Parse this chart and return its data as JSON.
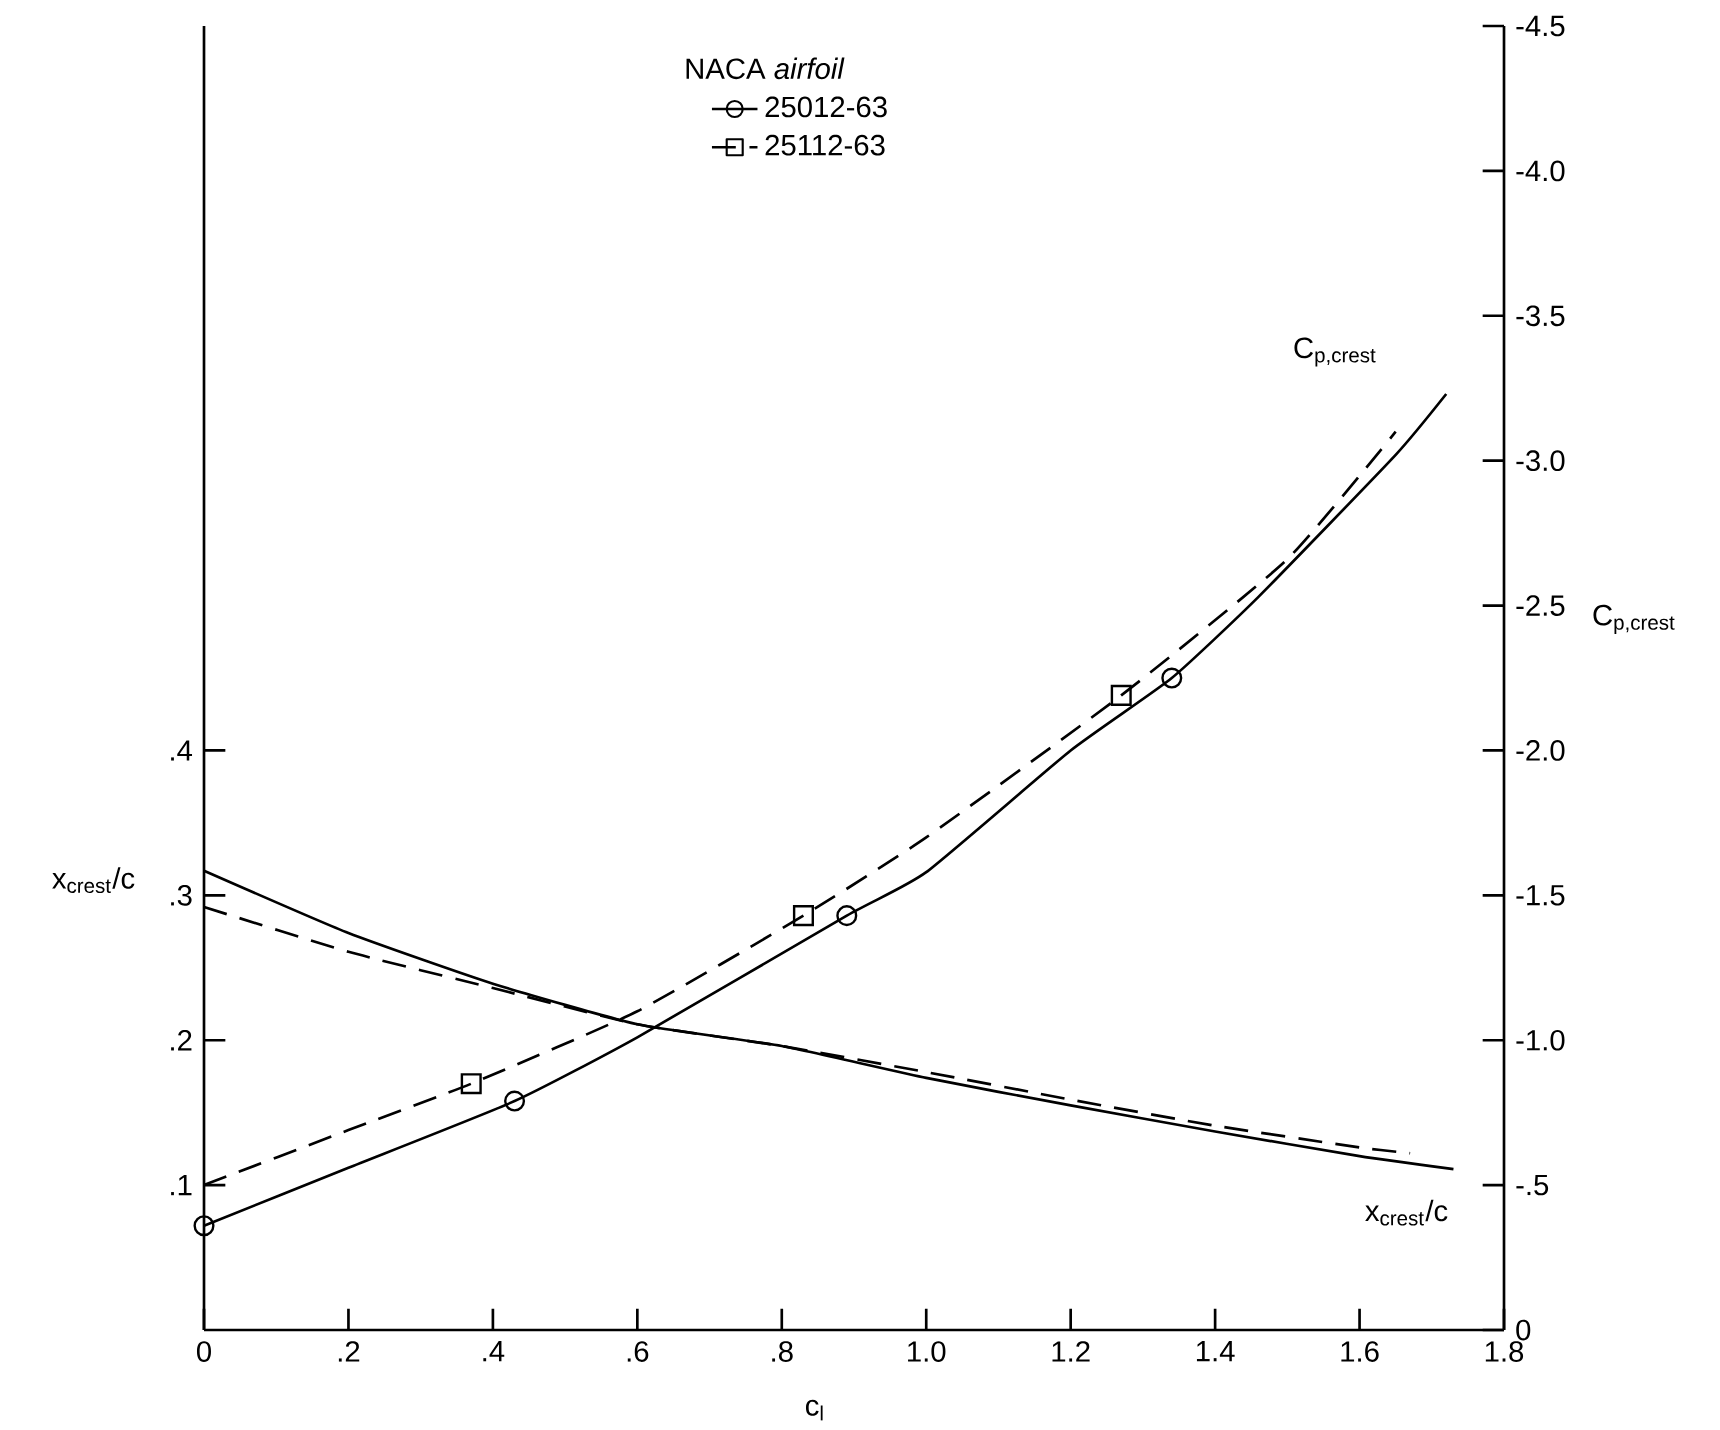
{
  "chart_data": {
    "type": "line",
    "xlabel": "c$_{l}$",
    "ylabel": "x$_{crest}$/c",
    "y2label": "C$_{p,crest}$",
    "legend_title": "NACA *airfoil*",
    "legend": "top",
    "annotations": [
      "C$_{p,crest}$",
      "x$_{crest}$/c"
    ],
    "xlim": [
      0,
      1.8
    ],
    "xticks": [
      0,
      {
        "value": 0.2,
        "label": ".2"
      },
      {
        "value": 0.4,
        "label": ".4"
      },
      {
        "value": 0.6,
        "label": ".6"
      },
      {
        "value": 0.8,
        "label": ".8"
      },
      {
        "value": 1.0,
        "label": "1.0"
      },
      {
        "value": 1.2,
        "label": "1.2"
      },
      {
        "value": 1.4,
        "label": "1.4"
      },
      {
        "value": 1.6,
        "label": "1.6"
      },
      {
        "value": 1.8,
        "label": "1.8"
      }
    ],
    "ylim": [
      0,
      0.9
    ],
    "yticks": [
      {
        "value": 0.1,
        "label": ".1"
      },
      {
        "value": 0.2,
        "label": ".2"
      },
      {
        "value": 0.3,
        "label": ".3"
      },
      {
        "value": 0.4,
        "label": ".4"
      }
    ],
    "y2lim": [
      0,
      -4.5
    ],
    "y2ticks": [
      0,
      {
        "value": -0.5,
        "label": "-.5"
      },
      {
        "value": -1.0,
        "label": "-1.0"
      },
      {
        "value": -1.5,
        "label": "-1.5"
      },
      {
        "value": -2.0,
        "label": "-2.0"
      },
      {
        "value": -2.5,
        "label": "-2.5"
      },
      {
        "value": -3.0,
        "label": "-3.0"
      },
      {
        "value": -3.5,
        "label": "-3.5"
      },
      {
        "value": -4.0,
        "label": "-4.0"
      },
      {
        "value": -4.5,
        "label": "-4.5"
      }
    ],
    "series": [
      {
        "name": "25012-63",
        "axis": "y2",
        "line_style": "solid",
        "color": "#000000",
        "x": [
          0,
          0.2,
          0.43,
          0.6,
          0.89,
          1.0,
          1.2,
          1.34,
          1.46,
          1.65,
          1.72
        ],
        "values": [
          -0.36,
          -0.56,
          -0.79,
          -1.01,
          -1.43,
          -1.58,
          -2.0,
          -2.25,
          -2.53,
          -3.02,
          -3.23
        ]
      },
      {
        "name": "25112-63",
        "axis": "y2",
        "line_style": "dashed",
        "color": "#000000",
        "x": [
          0,
          0.2,
          0.37,
          0.6,
          0.83,
          1.0,
          1.27,
          1.5,
          1.65
        ],
        "values": [
          -0.5,
          -0.69,
          -0.85,
          -1.1,
          -1.43,
          -1.7,
          -2.19,
          -2.66,
          -3.1
        ]
      },
      {
        "type": "scatter",
        "axis": "y2",
        "marker": "circle",
        "color": "#000000",
        "x": [
          0,
          0.43,
          0.89,
          1.34
        ],
        "values": [
          -0.36,
          -0.79,
          -1.43,
          -2.25
        ]
      },
      {
        "type": "scatter",
        "axis": "y2",
        "marker": "square",
        "color": "#000000",
        "x": [
          0.37,
          0.83,
          1.27
        ],
        "values": [
          -0.85,
          -1.43,
          -2.19
        ]
      },
      {
        "axis": "y",
        "line_style": "solid",
        "color": "#000000",
        "x": [
          0,
          0.2,
          0.4,
          0.6,
          0.8,
          1.0,
          1.2,
          1.4,
          1.6,
          1.73
        ],
        "values": [
          0.317,
          0.274,
          0.239,
          0.211,
          0.196,
          0.174,
          0.155,
          0.137,
          0.12,
          0.111
        ]
      },
      {
        "axis": "y",
        "line_style": "dashed",
        "color": "#000000",
        "x": [
          0,
          0.2,
          0.4,
          0.6,
          0.8,
          1.0,
          1.2,
          1.4,
          1.6,
          1.67
        ],
        "values": [
          0.292,
          0.261,
          0.236,
          0.211,
          0.196,
          0.178,
          0.159,
          0.141,
          0.126,
          0.122
        ]
      }
    ]
  }
}
